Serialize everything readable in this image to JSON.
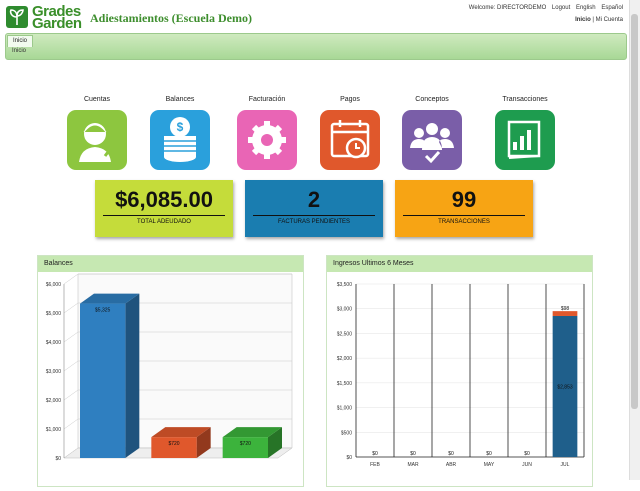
{
  "header": {
    "logo": [
      "Grades",
      "Garden"
    ],
    "title": "Adiestamientos (Escuela Demo)",
    "welcome": "Welcome: DIRECTORDEMO",
    "links": [
      "Logout",
      "English",
      "Español"
    ],
    "account_links": [
      "Inicio",
      "Mi Cuenta"
    ]
  },
  "nav": {
    "tab": "Inicio",
    "breadcrumb": "Inicio"
  },
  "shortcuts": [
    "Cuentas",
    "Balances",
    "Facturación",
    "Pagos",
    "Conceptos",
    "Transacciones"
  ],
  "stats": [
    {
      "value": "$6,085.00",
      "label": "TOTAL ADEUDADO"
    },
    {
      "value": 2,
      "label": "FACTURAS PENDIENTES"
    },
    {
      "value": 99,
      "label": "TRANSACCIONES"
    }
  ],
  "chart_data": [
    {
      "type": "bar3d",
      "title": "Balances",
      "values": [
        5325,
        720,
        720
      ],
      "value_labels": [
        "$5,325",
        "$720",
        "$720"
      ],
      "colors": [
        "#2f7fc0",
        "#e0582c",
        "#3cb33c"
      ],
      "ylim": [
        0,
        6000
      ],
      "yticks": [
        {
          "value": 0,
          "label": "$0"
        },
        {
          "value": 1000,
          "label": "$1,000"
        },
        {
          "value": 2000,
          "label": "$2,000"
        },
        {
          "value": 3000,
          "label": "$3,000"
        },
        {
          "value": 4000,
          "label": "$4,000"
        },
        {
          "value": 5000,
          "label": "$5,000"
        },
        {
          "value": 6000,
          "label": "$6,000"
        }
      ],
      "grid": true
    },
    {
      "type": "stacked_bar",
      "title": "Ingresos Ultimos 6 Meses",
      "categories": [
        "FEB",
        "MAR",
        "ABR",
        "MAY",
        "JUN",
        "JUL"
      ],
      "series": [
        {
          "color": "#1f5f8b",
          "values": [
            0,
            0,
            0,
            0,
            0,
            2853
          ],
          "value_labels": [
            "$0",
            "$0",
            "$0",
            "$0",
            "$0",
            "$2,853"
          ]
        },
        {
          "color": "#e0582c",
          "values": [
            0,
            0,
            0,
            0,
            0,
            98
          ],
          "value_labels": [
            null,
            null,
            null,
            null,
            null,
            "$98"
          ]
        }
      ],
      "ylim": [
        0,
        3500
      ],
      "yticks": [
        {
          "value": 0,
          "label": "$0"
        },
        {
          "value": 500,
          "label": "$500"
        },
        {
          "value": 1000,
          "label": "$1,000"
        },
        {
          "value": 1500,
          "label": "$1,500"
        },
        {
          "value": 2000,
          "label": "$2,000"
        },
        {
          "value": 2500,
          "label": "$2,500"
        },
        {
          "value": 3000,
          "label": "$3,000"
        },
        {
          "value": 3500,
          "label": "$3,500"
        }
      ],
      "grid": true
    }
  ]
}
